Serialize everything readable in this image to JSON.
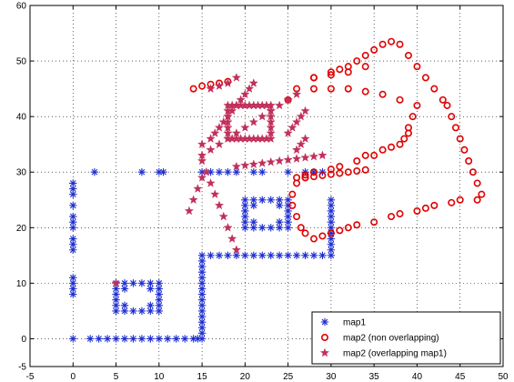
{
  "chart_data": {
    "type": "scatter",
    "xlim": [
      -5,
      50
    ],
    "ylim": [
      -5,
      60
    ],
    "xticks": [
      "-5",
      "0",
      "5",
      "10",
      "15",
      "20",
      "25",
      "30",
      "35",
      "40",
      "45",
      "50"
    ],
    "yticks": [
      "-5",
      "0",
      "10",
      "20",
      "30",
      "40",
      "50",
      "60"
    ],
    "grid": true,
    "legend_position": "bottom-right",
    "legend": [
      "map1",
      "map2 (non overlapping)",
      "map2 (overlapping map1)"
    ],
    "colors": {
      "map1": "#1f2fd0",
      "nonoverlap": "#e00000",
      "overlap": "#c0305a"
    },
    "series": [
      {
        "name": "map1",
        "marker": "asterisk",
        "points": [
          [
            0,
            0
          ],
          [
            2,
            0
          ],
          [
            3,
            0
          ],
          [
            4,
            0
          ],
          [
            5,
            0
          ],
          [
            6,
            0
          ],
          [
            7,
            0
          ],
          [
            8,
            0
          ],
          [
            9,
            0
          ],
          [
            10,
            0
          ],
          [
            11,
            0
          ],
          [
            12,
            0
          ],
          [
            13,
            0
          ],
          [
            14,
            0
          ],
          [
            14.5,
            0
          ],
          [
            15,
            0
          ],
          [
            0,
            8
          ],
          [
            0,
            9
          ],
          [
            0,
            10
          ],
          [
            0,
            11
          ],
          [
            0,
            16
          ],
          [
            0,
            17
          ],
          [
            0,
            18
          ],
          [
            0,
            20
          ],
          [
            0,
            21
          ],
          [
            0,
            22
          ],
          [
            0,
            24
          ],
          [
            0,
            26
          ],
          [
            0,
            27
          ],
          [
            0,
            28
          ],
          [
            2.5,
            30
          ],
          [
            8,
            30
          ],
          [
            10,
            30
          ],
          [
            10.5,
            30
          ],
          [
            15,
            1
          ],
          [
            15,
            2
          ],
          [
            15,
            3
          ],
          [
            15,
            4
          ],
          [
            15,
            5
          ],
          [
            15,
            6
          ],
          [
            15,
            7
          ],
          [
            15,
            8
          ],
          [
            15,
            9
          ],
          [
            15,
            10
          ],
          [
            15,
            11
          ],
          [
            15,
            12
          ],
          [
            15,
            13
          ],
          [
            15,
            14
          ],
          [
            15,
            15
          ],
          [
            16,
            15
          ],
          [
            17,
            15
          ],
          [
            18,
            15
          ],
          [
            19,
            15
          ],
          [
            20,
            15
          ],
          [
            21,
            15
          ],
          [
            22,
            15
          ],
          [
            23,
            15
          ],
          [
            24,
            15
          ],
          [
            25,
            15
          ],
          [
            26,
            15
          ],
          [
            27,
            15
          ],
          [
            28,
            15
          ],
          [
            29,
            15
          ],
          [
            30,
            15
          ],
          [
            30,
            16
          ],
          [
            30,
            17
          ],
          [
            30,
            18
          ],
          [
            30,
            19
          ],
          [
            30,
            20
          ],
          [
            30,
            21
          ],
          [
            30,
            22
          ],
          [
            30,
            23
          ],
          [
            30,
            24
          ],
          [
            30,
            25
          ],
          [
            5,
            5
          ],
          [
            5,
            6
          ],
          [
            5,
            7
          ],
          [
            5,
            8
          ],
          [
            5,
            9
          ],
          [
            5,
            10
          ],
          [
            6,
            5
          ],
          [
            7,
            5
          ],
          [
            8,
            5
          ],
          [
            9,
            5
          ],
          [
            10,
            5
          ],
          [
            10,
            6
          ],
          [
            10,
            7
          ],
          [
            10,
            8
          ],
          [
            10,
            9
          ],
          [
            10,
            10
          ],
          [
            6,
            10
          ],
          [
            7,
            10
          ],
          [
            8,
            10
          ],
          [
            9,
            10
          ],
          [
            6,
            6
          ],
          [
            6,
            9
          ],
          [
            9,
            6
          ],
          [
            9,
            9
          ],
          [
            20,
            20
          ],
          [
            20,
            21
          ],
          [
            20,
            22
          ],
          [
            20,
            23
          ],
          [
            20,
            24
          ],
          [
            20,
            25
          ],
          [
            21,
            20
          ],
          [
            22,
            20
          ],
          [
            23,
            20
          ],
          [
            24,
            20
          ],
          [
            25,
            20
          ],
          [
            25,
            21
          ],
          [
            25,
            22
          ],
          [
            25,
            23
          ],
          [
            25,
            24
          ],
          [
            25,
            25
          ],
          [
            21,
            25
          ],
          [
            22,
            25
          ],
          [
            23,
            25
          ],
          [
            24,
            25
          ],
          [
            21,
            21
          ],
          [
            21,
            24
          ],
          [
            24,
            21
          ],
          [
            24,
            24
          ],
          [
            15,
            30
          ],
          [
            16,
            30
          ],
          [
            17,
            30
          ],
          [
            18,
            30
          ],
          [
            19,
            30
          ],
          [
            21,
            30
          ],
          [
            22,
            30
          ],
          [
            25,
            30
          ],
          [
            27,
            30
          ],
          [
            28,
            30
          ],
          [
            29,
            30
          ]
        ]
      },
      {
        "name": "map2 (non overlapping)",
        "marker": "circle",
        "points": [
          [
            14,
            45
          ],
          [
            15,
            45.5
          ],
          [
            16,
            45.8
          ],
          [
            17,
            46
          ],
          [
            18,
            46.3
          ],
          [
            28,
            47
          ],
          [
            30,
            48
          ],
          [
            31,
            48.5
          ],
          [
            32,
            49
          ],
          [
            33,
            50
          ],
          [
            34,
            51
          ],
          [
            35,
            52
          ],
          [
            36,
            53
          ],
          [
            37,
            53.5
          ],
          [
            38,
            53
          ],
          [
            39,
            51
          ],
          [
            40,
            49
          ],
          [
            41,
            47
          ],
          [
            42,
            45
          ],
          [
            43,
            43
          ],
          [
            43.5,
            42
          ],
          [
            44,
            40
          ],
          [
            44.5,
            38
          ],
          [
            45,
            36
          ],
          [
            45.5,
            34
          ],
          [
            46,
            32
          ],
          [
            46.5,
            30
          ],
          [
            47,
            28
          ],
          [
            47.5,
            26
          ],
          [
            47,
            25
          ],
          [
            45,
            25
          ],
          [
            44,
            24.5
          ],
          [
            42,
            24
          ],
          [
            41,
            23.5
          ],
          [
            40,
            23
          ],
          [
            38,
            22.5
          ],
          [
            37,
            22
          ],
          [
            35,
            21
          ],
          [
            33,
            20.5
          ],
          [
            32,
            20
          ],
          [
            31,
            19.5
          ],
          [
            30,
            19
          ],
          [
            29,
            18.5
          ],
          [
            28,
            18
          ],
          [
            27,
            19
          ],
          [
            26.5,
            20
          ],
          [
            26,
            22
          ],
          [
            25.5,
            24
          ],
          [
            25.5,
            26
          ],
          [
            26,
            28
          ],
          [
            27,
            29
          ],
          [
            26,
            29
          ],
          [
            27,
            29.5
          ],
          [
            28,
            30
          ],
          [
            30,
            30.5
          ],
          [
            31,
            31
          ],
          [
            33,
            32
          ],
          [
            34,
            33
          ],
          [
            35,
            33
          ],
          [
            36,
            34
          ],
          [
            37,
            34.5
          ],
          [
            38,
            35
          ],
          [
            38.5,
            36
          ],
          [
            39,
            37
          ],
          [
            39,
            38
          ],
          [
            39.5,
            40
          ],
          [
            40,
            42
          ],
          [
            38,
            43
          ],
          [
            36,
            44
          ],
          [
            34,
            44.5
          ],
          [
            32,
            45
          ],
          [
            30,
            45
          ],
          [
            28,
            45
          ],
          [
            26,
            45
          ],
          [
            25,
            43
          ],
          [
            27,
            29
          ],
          [
            28,
            29.2
          ],
          [
            29,
            29.4
          ],
          [
            30,
            29.6
          ],
          [
            31,
            29.8
          ],
          [
            32,
            30
          ],
          [
            33,
            30.2
          ],
          [
            34,
            30.4
          ],
          [
            28,
            47
          ],
          [
            30,
            47.5
          ],
          [
            32,
            48
          ],
          [
            34,
            49
          ]
        ]
      },
      {
        "name": "map2 (overlapping map1)",
        "marker": "star",
        "points": [
          [
            5,
            10
          ],
          [
            15,
            32
          ],
          [
            15.5,
            30
          ],
          [
            16,
            28
          ],
          [
            16.5,
            26
          ],
          [
            17,
            24
          ],
          [
            17.5,
            22
          ],
          [
            18,
            20
          ],
          [
            18.5,
            18
          ],
          [
            19,
            16
          ],
          [
            15,
            33
          ],
          [
            16,
            34
          ],
          [
            17,
            35
          ],
          [
            18,
            36
          ],
          [
            19,
            37
          ],
          [
            20,
            38
          ],
          [
            21,
            39
          ],
          [
            22,
            40
          ],
          [
            23,
            41
          ],
          [
            24,
            42
          ],
          [
            25,
            43
          ],
          [
            26,
            44
          ],
          [
            19,
            31
          ],
          [
            20,
            31.2
          ],
          [
            21,
            31.4
          ],
          [
            22,
            31.6
          ],
          [
            23,
            31.8
          ],
          [
            24,
            32
          ],
          [
            25,
            32.2
          ],
          [
            26,
            32.4
          ],
          [
            27,
            32.6
          ],
          [
            28,
            32.8
          ],
          [
            29,
            33
          ],
          [
            15,
            35
          ],
          [
            16,
            36
          ],
          [
            16.5,
            37
          ],
          [
            17,
            38
          ],
          [
            17.5,
            39
          ],
          [
            18,
            40
          ],
          [
            18.5,
            41
          ],
          [
            19,
            42
          ],
          [
            19.5,
            43
          ],
          [
            20,
            44
          ],
          [
            20.5,
            45
          ],
          [
            21,
            46
          ],
          [
            16,
            45
          ],
          [
            17,
            45.5
          ],
          [
            18,
            46
          ],
          [
            19,
            47
          ],
          [
            18,
            36
          ],
          [
            18,
            37
          ],
          [
            18,
            38
          ],
          [
            18,
            39
          ],
          [
            18,
            40
          ],
          [
            18,
            41
          ],
          [
            18,
            42
          ],
          [
            23,
            36
          ],
          [
            23,
            37
          ],
          [
            23,
            38
          ],
          [
            23,
            39
          ],
          [
            23,
            40
          ],
          [
            23,
            41
          ],
          [
            23,
            42
          ],
          [
            18.5,
            36
          ],
          [
            19,
            36
          ],
          [
            19.5,
            36
          ],
          [
            20,
            36
          ],
          [
            20.5,
            36
          ],
          [
            21,
            36
          ],
          [
            21.5,
            36
          ],
          [
            22,
            36
          ],
          [
            22.5,
            36
          ],
          [
            18.5,
            42
          ],
          [
            19,
            42
          ],
          [
            19.5,
            42
          ],
          [
            20,
            42
          ],
          [
            20.5,
            42
          ],
          [
            21,
            42
          ],
          [
            21.5,
            42
          ],
          [
            22,
            42
          ],
          [
            22.5,
            42
          ],
          [
            14,
            25
          ],
          [
            14.5,
            27
          ],
          [
            15,
            29
          ],
          [
            13.5,
            23
          ],
          [
            25,
            37
          ],
          [
            25.5,
            38
          ],
          [
            26,
            39
          ],
          [
            26.5,
            40
          ],
          [
            27,
            41
          ],
          [
            27,
            36
          ],
          [
            26.5,
            35
          ],
          [
            26,
            34
          ]
        ]
      }
    ]
  }
}
